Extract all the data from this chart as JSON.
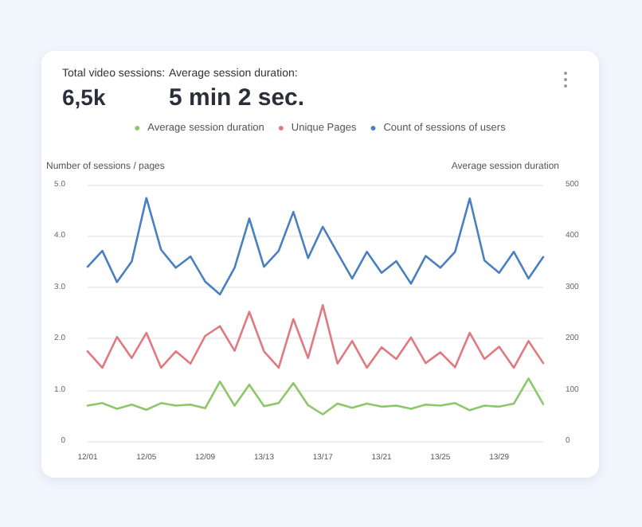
{
  "chart_data": {
    "type": "line",
    "annotations": [
      "Total video sessions:",
      "6,5k",
      "Average session duration:",
      "5 min 2 sec."
    ],
    "ylabel": "Number of sessions / pages",
    "y2label": "Average session duration",
    "categories": [
      "12/01",
      null,
      null,
      null,
      "12/05",
      null,
      null,
      null,
      "12/09",
      null,
      null,
      null,
      "13/13",
      null,
      null,
      null,
      "13/17",
      null,
      null,
      null,
      "13/21",
      null,
      null,
      null,
      "13/25",
      null,
      null,
      null,
      "13/29",
      null,
      null,
      null
    ],
    "series": [
      {
        "name": "Average session duration",
        "color": "#8cc86a",
        "axis": "y2",
        "values": [
          69,
          74,
          63,
          71,
          61,
          74,
          69,
          71,
          64,
          116,
          69,
          110,
          68,
          74,
          113,
          70,
          52,
          73,
          65,
          73,
          67,
          69,
          63,
          71,
          69,
          74,
          60,
          69,
          67,
          73,
          122,
          72
        ]
      },
      {
        "name": "Unique Pages",
        "color": "#e07a80",
        "values": [
          1.75,
          1.43,
          2.03,
          1.62,
          2.11,
          1.43,
          1.75,
          1.51,
          2.05,
          2.24,
          1.76,
          2.52,
          1.75,
          1.43,
          2.38,
          1.62,
          2.65,
          1.51,
          1.95,
          1.43,
          1.83,
          1.6,
          2.02,
          1.52,
          1.73,
          1.44,
          2.11,
          1.6,
          1.84,
          1.43,
          1.95,
          1.52
        ]
      },
      {
        "name": "Count of sessions of users",
        "color": "#4a80c0",
        "values": [
          3.4,
          3.71,
          3.1,
          3.5,
          4.74,
          3.73,
          3.38,
          3.6,
          3.11,
          2.86,
          3.38,
          4.34,
          3.4,
          3.71,
          4.47,
          3.57,
          4.18,
          3.67,
          3.17,
          3.69,
          3.28,
          3.51,
          3.07,
          3.61,
          3.38,
          3.69,
          4.73,
          3.52,
          3.28,
          3.69,
          3.17,
          3.59
        ]
      }
    ],
    "ylim": [
      0,
      5
    ],
    "yticks": [
      0,
      {
        "value": 1,
        "label": "1.0"
      },
      {
        "value": 2,
        "label": "2.0"
      },
      {
        "value": 3,
        "label": "3.0"
      },
      {
        "value": 4,
        "label": "4.0"
      },
      {
        "value": 5,
        "label": "5.0"
      }
    ],
    "y2lim": [
      0,
      500
    ],
    "y2ticks": [
      0,
      100,
      200,
      300,
      400,
      500
    ],
    "grid": "y",
    "legend": "top",
    "marker": "none",
    "line_style": "solid"
  }
}
